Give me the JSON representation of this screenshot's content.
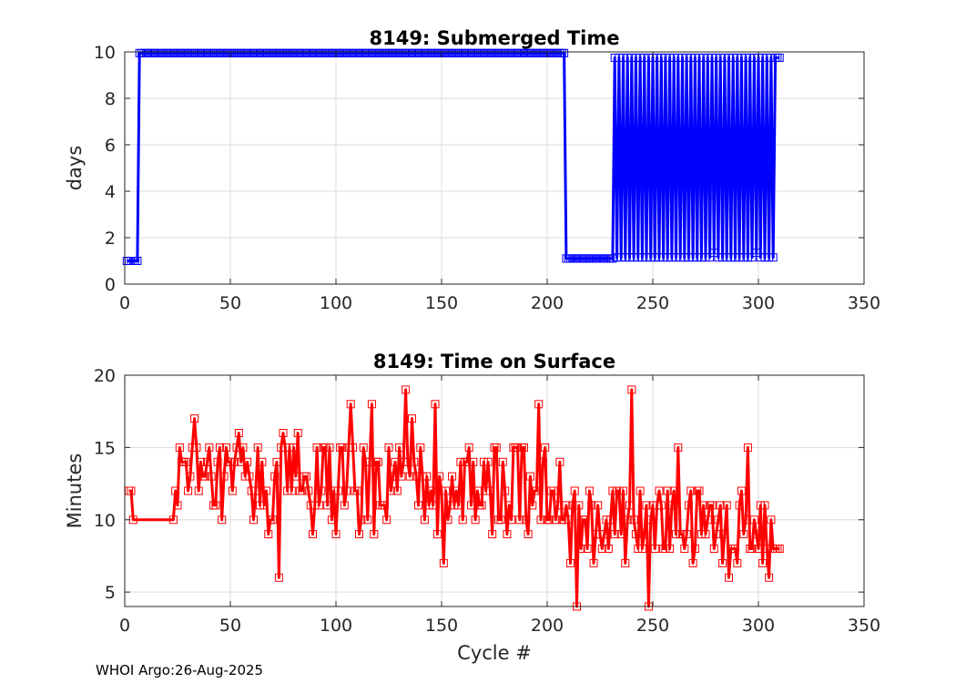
{
  "footer": "WHOI Argo:26-Aug-2025",
  "chart_data": [
    {
      "type": "line",
      "title": "8149: Submerged Time",
      "xlabel": "",
      "ylabel": "days",
      "xlim": [
        0,
        350
      ],
      "ylim": [
        0,
        10
      ],
      "xticks": [
        0,
        50,
        100,
        150,
        200,
        250,
        300,
        350
      ],
      "yticks": [
        0,
        2,
        4,
        6,
        8,
        10
      ],
      "color": "#0000ff",
      "marker": "square",
      "series": [
        {
          "name": "submerged",
          "x": [],
          "y": []
        }
      ]
    },
    {
      "type": "line",
      "title": "8149: Time on Surface",
      "xlabel": "Cycle #",
      "ylabel": "Minutes",
      "xlim": [
        0,
        350
      ],
      "ylim": [
        4,
        20
      ],
      "xticks": [
        0,
        50,
        100,
        150,
        200,
        250,
        300,
        350
      ],
      "yticks": [
        5,
        10,
        15,
        20
      ],
      "color": "#ff0000",
      "marker": "square",
      "series": [
        {
          "name": "surface",
          "x": [],
          "y": []
        }
      ]
    }
  ]
}
